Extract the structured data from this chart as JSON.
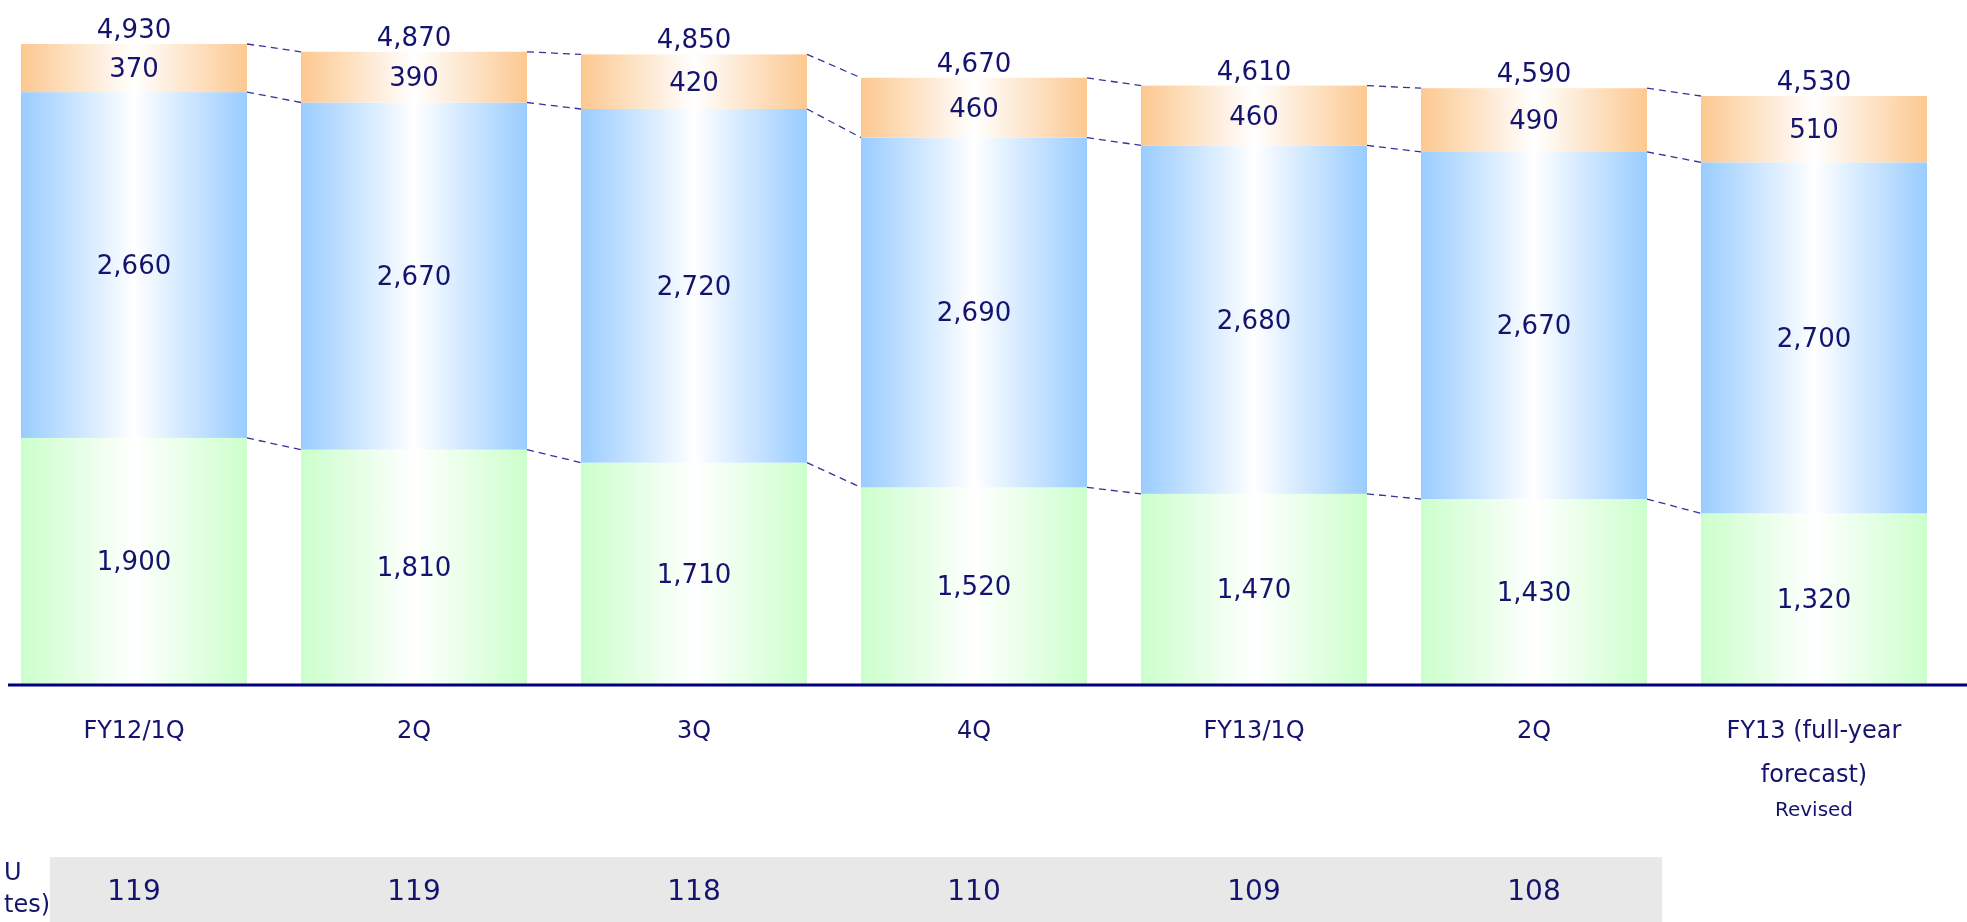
{
  "chart_data": {
    "type": "bar",
    "stacked": true,
    "categories": [
      "FY12/1Q",
      "2Q",
      "3Q",
      "4Q",
      "FY13/1Q",
      "2Q",
      "FY13 (full-year forecast)"
    ],
    "series": [
      {
        "color": "#ccffcc",
        "values": [
          1900,
          1810,
          1710,
          1520,
          1470,
          1430,
          1320
        ],
        "value_labels": [
          "1,900",
          "1,810",
          "1,710",
          "1,520",
          "1,470",
          "1,430",
          "1,320"
        ]
      },
      {
        "color": "#99ccff",
        "values": [
          2660,
          2670,
          2720,
          2690,
          2680,
          2670,
          2700
        ],
        "value_labels": [
          "2,660",
          "2,670",
          "2,720",
          "2,690",
          "2,680",
          "2,670",
          "2,700"
        ]
      },
      {
        "color": "#fcc890",
        "values": [
          370,
          390,
          420,
          460,
          460,
          490,
          510
        ],
        "value_labels": [
          "370",
          "390",
          "420",
          "460",
          "460",
          "490",
          "510"
        ]
      }
    ],
    "totals": [
      "4,930",
      "4,870",
      "4,850",
      "4,670",
      "4,610",
      "4,590",
      "4,530"
    ],
    "annotations": [
      "U",
      "tes)",
      "119",
      "119",
      "118",
      "110",
      "109",
      "108",
      "Revised"
    ]
  }
}
